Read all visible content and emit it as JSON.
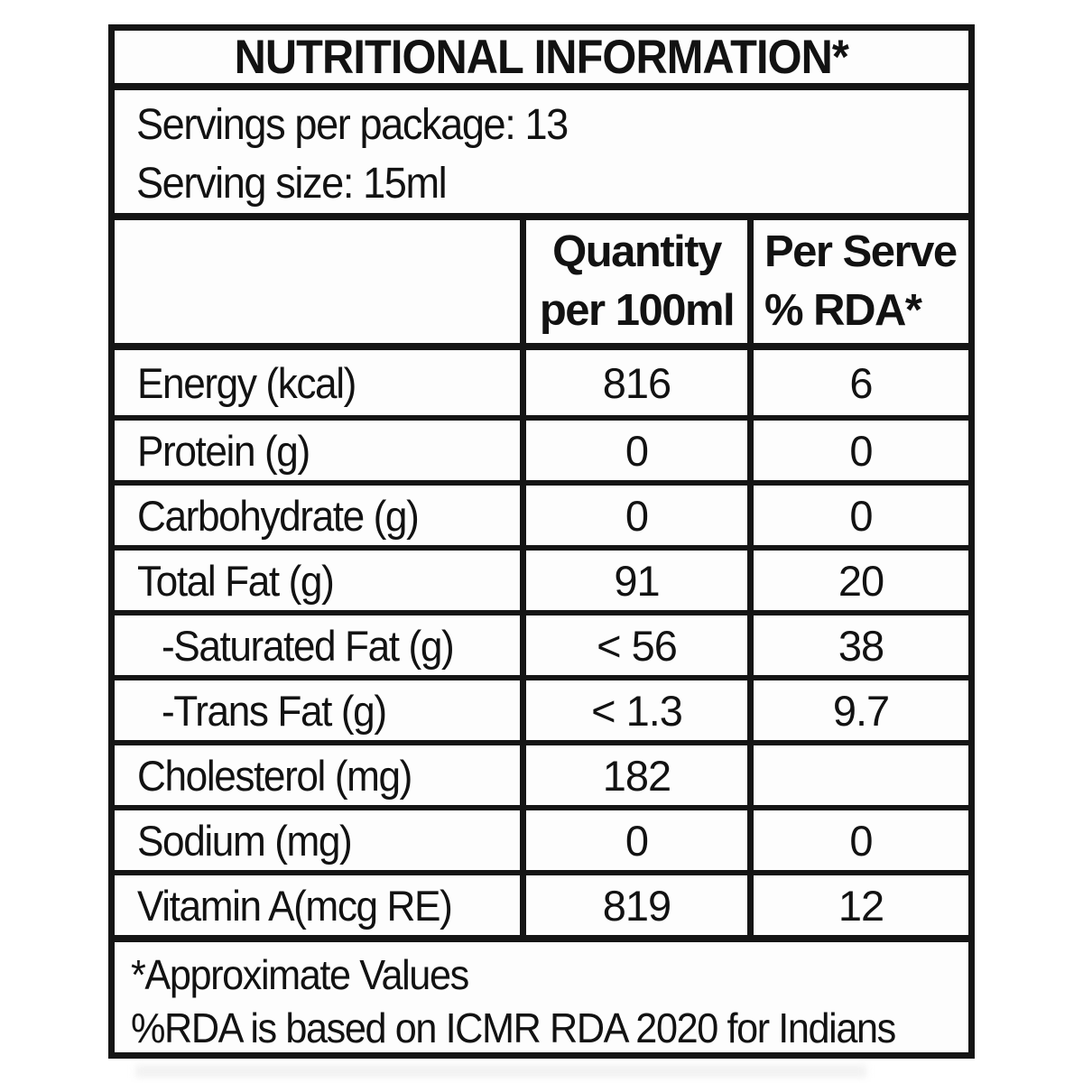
{
  "title": "NUTRITIONAL INFORMATION*",
  "serving_info": {
    "servings_per_package": "Servings per package: 13",
    "serving_size": "Serving size: 15ml"
  },
  "table": {
    "header": {
      "quantity_col": "Quantity\nper 100ml",
      "rda_col": "Per Serve\n% RDA*"
    },
    "rows": [
      {
        "label": "Energy (kcal)",
        "qty": "816",
        "rda": "6"
      },
      {
        "label": "Protein (g)",
        "qty": "0",
        "rda": "0"
      },
      {
        "label": "Carbohydrate (g)",
        "qty": "0",
        "rda": "0"
      },
      {
        "label": "Total Fat (g)",
        "qty": "91",
        "rda": "20"
      },
      {
        "label": "-Saturated Fat (g)",
        "qty": "< 56",
        "rda": "38"
      },
      {
        "label": "-Trans Fat (g)",
        "qty": "< 1.3",
        "rda": "9.7"
      },
      {
        "label": "Cholesterol (mg)",
        "qty": "182",
        "rda": ""
      },
      {
        "label": "Sodium (mg)",
        "qty": "0",
        "rda": "0"
      },
      {
        "label": "Vitamin A(mcg RE)",
        "qty": "819",
        "rda": "12"
      }
    ]
  },
  "footnotes": {
    "line1": "*Approximate Values",
    "line2": "%RDA is based on ICMR RDA 2020 for Indians"
  },
  "colors": {
    "text": "#121212",
    "border": "#151515",
    "background": "#ffffff"
  }
}
